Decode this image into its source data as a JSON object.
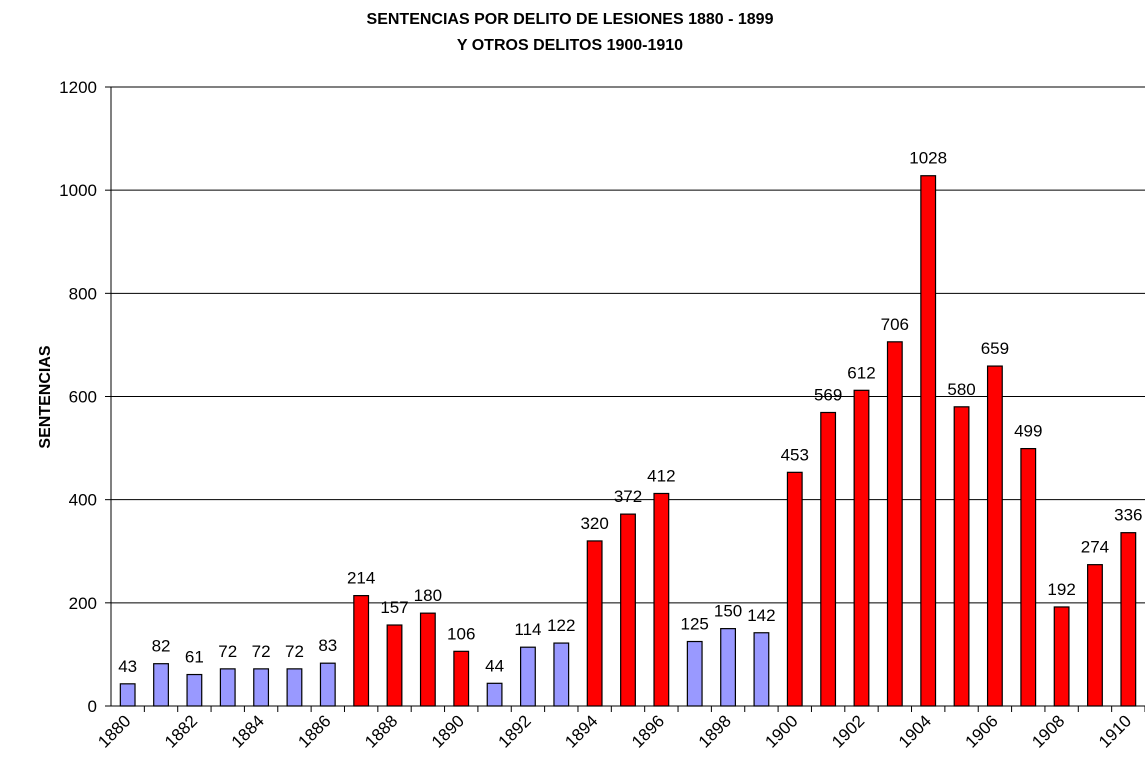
{
  "chart_data": {
    "type": "bar",
    "title": "SENTENCIAS POR DELITO DE LESIONES  1880 - 1899",
    "subtitle": "Y OTROS DELITOS 1900-1910",
    "y_label": "SENTENCIAS",
    "categories": [
      "1880",
      null,
      "1882",
      null,
      "1884",
      null,
      "1886",
      null,
      "1888",
      null,
      "1890",
      null,
      "1892",
      null,
      "1894",
      null,
      "1896",
      null,
      "1898",
      null,
      "1900",
      null,
      "1902",
      null,
      "1904",
      null,
      "1906",
      null,
      "1908",
      null,
      "1910"
    ],
    "values": [
      43,
      82,
      61,
      72,
      72,
      72,
      83,
      214,
      157,
      180,
      106,
      44,
      114,
      122,
      320,
      372,
      412,
      125,
      150,
      142,
      453,
      569,
      612,
      706,
      1028,
      580,
      659,
      499,
      192,
      274,
      336
    ],
    "colors": [
      "#9999ff",
      "#9999ff",
      "#9999ff",
      "#9999ff",
      "#9999ff",
      "#9999ff",
      "#9999ff",
      "#ff0000",
      "#ff0000",
      "#ff0000",
      "#ff0000",
      "#9999ff",
      "#9999ff",
      "#9999ff",
      "#ff0000",
      "#ff0000",
      "#ff0000",
      "#9999ff",
      "#9999ff",
      "#9999ff",
      "#ff0000",
      "#ff0000",
      "#ff0000",
      "#ff0000",
      "#ff0000",
      "#ff0000",
      "#ff0000",
      "#ff0000",
      "#ff0000",
      "#ff0000",
      "#ff0000"
    ],
    "ylim": [
      0,
      1200
    ],
    "yticks": [
      0,
      200,
      400,
      600,
      800,
      1000,
      1200
    ],
    "grid": true
  }
}
